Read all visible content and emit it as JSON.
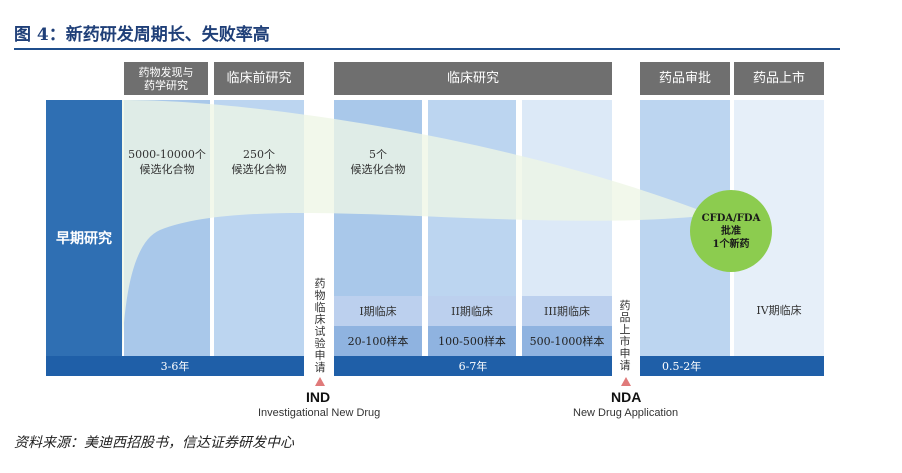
{
  "figure": {
    "title": "图 4：新药研发周期长、失败率高",
    "source": "资料来源：美迪西招股书，信达证券研发中心"
  },
  "headers": {
    "discovery": [
      "药物发现与",
      "药学研究"
    ],
    "preclinical": "临床前研究",
    "clinical": "临床研究",
    "approval": "药品审批",
    "market": "药品上市"
  },
  "early_research": "早期研究",
  "compounds": {
    "discovery": [
      "5000-10000个",
      "候选化合物"
    ],
    "preclinical": [
      "250个",
      "候选化合物"
    ],
    "clinical": [
      "5个",
      "候选化合物"
    ]
  },
  "phases": [
    {
      "name": "I期临床",
      "samples": "20-100样本"
    },
    {
      "name": "II期临床",
      "samples": "100-500样本"
    },
    {
      "name": "III期临床",
      "samples": "500-1000样本"
    }
  ],
  "phase4": "IV期临床",
  "durations": {
    "early": "3-6年",
    "clinical": "6-7年",
    "approval": "0.5-2年"
  },
  "vertical_labels": {
    "ind_apply": "药物临床试验申请",
    "nda_apply": "药品上市申请"
  },
  "milestones": {
    "ind": "IND",
    "ind_full": "Investigational New Drug",
    "nda": "NDA",
    "nda_full": "New Drug Application"
  },
  "approval_circle": [
    "CFDA/FDA",
    "批准",
    "1个新药"
  ],
  "colors": {
    "header": "#6f6f6f",
    "bar": "#1f5fa8",
    "funnel": "#e3f0d6",
    "circle": "#8ccc4f",
    "marker": "#e07a7a"
  }
}
